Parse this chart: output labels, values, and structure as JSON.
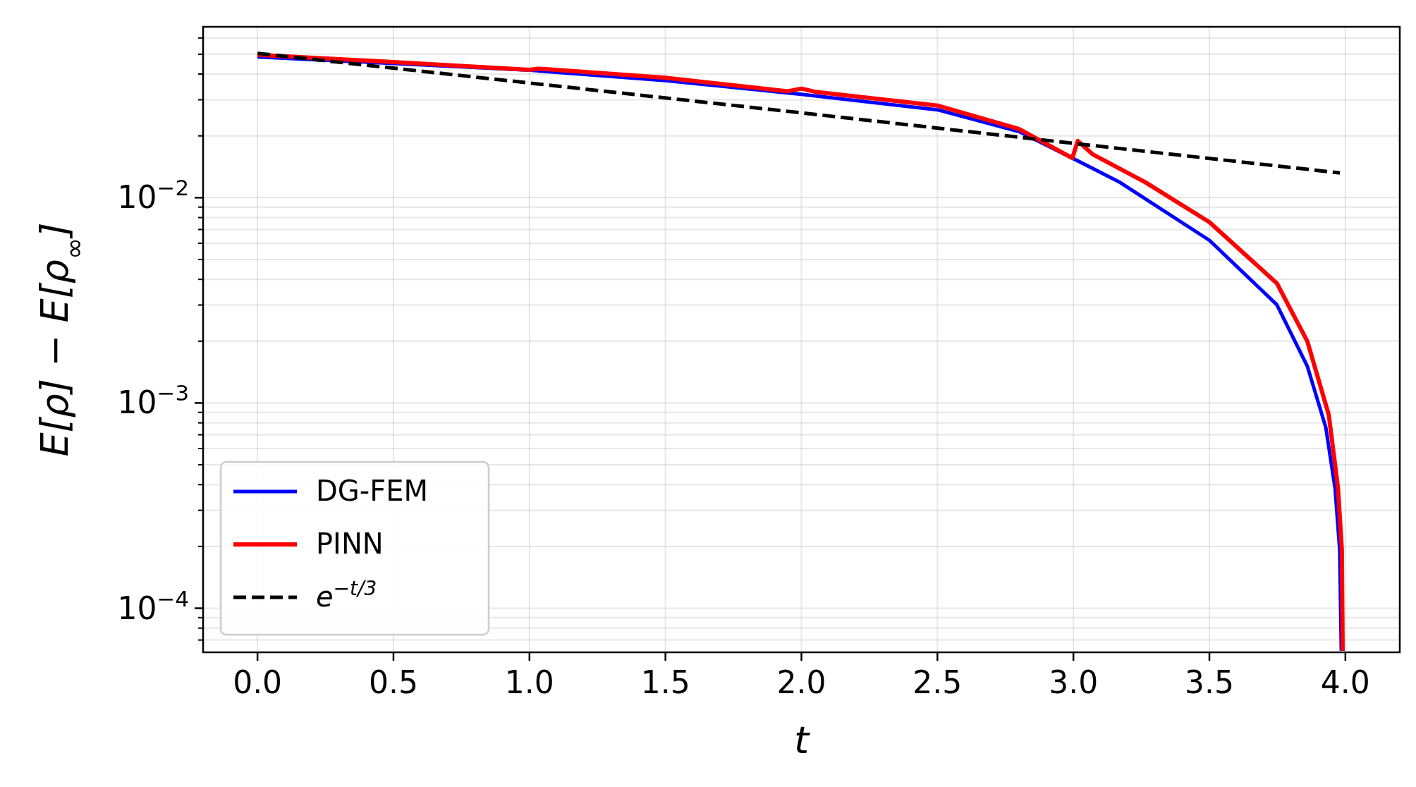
{
  "chart_data": {
    "type": "line",
    "xlabel": "t",
    "ylabel": "E[ρ] − E[ρ$_{∞}$]",
    "log": "y",
    "grid": true,
    "legend": "bottom left",
    "xlim": [
      -0.2,
      4.2
    ],
    "xticks": [
      {
        "value": 0,
        "label": "0.0"
      },
      {
        "value": 0.5,
        "label": "0.5"
      },
      {
        "value": 1,
        "label": "1.0"
      },
      {
        "value": 1.5,
        "label": "1.5"
      },
      {
        "value": 2,
        "label": "2.0"
      },
      {
        "value": 2.5,
        "label": "2.5"
      },
      {
        "value": 3,
        "label": "3.0"
      },
      {
        "value": 3.5,
        "label": "3.5"
      },
      {
        "value": 4,
        "label": "4.0"
      }
    ],
    "ylim": [
      6.1e-05,
      0.068
    ],
    "yticks": [
      {
        "value": 7e-05,
        "label": null
      },
      {
        "value": 8e-05,
        "label": null
      },
      {
        "value": 9e-05,
        "label": null
      },
      {
        "value": 0.0001,
        "label": "10$^{−4}$"
      },
      {
        "value": 0.0002,
        "label": null
      },
      {
        "value": 0.0003,
        "label": null
      },
      {
        "value": 0.0004,
        "label": null
      },
      {
        "value": 0.0005,
        "label": null
      },
      {
        "value": 0.0006,
        "label": null
      },
      {
        "value": 0.0007,
        "label": null
      },
      {
        "value": 0.0008,
        "label": null
      },
      {
        "value": 0.0009,
        "label": null
      },
      {
        "value": 0.001,
        "label": "10$^{−3}$"
      },
      {
        "value": 0.002,
        "label": null
      },
      {
        "value": 0.003,
        "label": null
      },
      {
        "value": 0.004,
        "label": null
      },
      {
        "value": 0.005,
        "label": null
      },
      {
        "value": 0.006,
        "label": null
      },
      {
        "value": 0.007,
        "label": null
      },
      {
        "value": 0.008,
        "label": null
      },
      {
        "value": 0.009,
        "label": null
      },
      {
        "value": 0.01,
        "label": "10$^{−2}$"
      },
      {
        "value": 0.02,
        "label": null
      },
      {
        "value": 0.03,
        "label": null
      },
      {
        "value": 0.04,
        "label": null
      },
      {
        "value": 0.05,
        "label": null
      },
      {
        "value": 0.06,
        "label": null
      }
    ],
    "series": [
      {
        "name": "DG-FEM",
        "color": "#0000ff",
        "line_style": "solid",
        "x": [
          0,
          0.5,
          1,
          1.5,
          2,
          2.5,
          2.8,
          3,
          3.17,
          3.5,
          3.748,
          3.86,
          3.928,
          3.962,
          3.979,
          3.985
        ],
        "values": [
          0.0485,
          0.0451,
          0.0418,
          0.0372,
          0.0319,
          0.0268,
          0.021,
          0.0155,
          0.0119,
          0.0062,
          0.00301,
          0.00151,
          0.00076,
          0.000384,
          0.000193,
          6.2e-05
        ]
      },
      {
        "name": "PINN",
        "color": "#ff0000",
        "line_style": "solid",
        "x": [
          0,
          0.5,
          1,
          1.03,
          1.06,
          1.5,
          1.95,
          2,
          2.05,
          2.5,
          2.8,
          2.996,
          3.016,
          3.07,
          3.264,
          3.5,
          3.748,
          3.86,
          3.939,
          3.973,
          3.987,
          3.99
        ],
        "values": [
          0.0497,
          0.0458,
          0.042,
          0.0425,
          0.0423,
          0.0384,
          0.033,
          0.034,
          0.0328,
          0.0281,
          0.0216,
          0.0156,
          0.0189,
          0.0163,
          0.0119,
          0.0076,
          0.00383,
          0.002,
          0.000875,
          0.000384,
          0.000193,
          6.2e-05
        ]
      },
      {
        "name": "e$^{−t/3}$",
        "color": "#000000",
        "line_style": "dashed",
        "x": [
          0,
          1,
          2,
          3,
          3.98
        ],
        "values": [
          0.0505,
          0.0362,
          0.0259,
          0.0184,
          0.0132
        ]
      }
    ]
  }
}
